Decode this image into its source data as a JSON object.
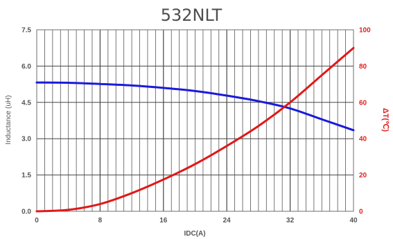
{
  "chart_data": {
    "type": "line",
    "title": "532NLT",
    "xlabel": "IDC(A)",
    "ylabel_left": "Inductance  (uH)",
    "ylabel_right": "ΔT(℃)",
    "xlim": [
      0,
      40
    ],
    "ylim_left": [
      0,
      7.5
    ],
    "ylim_right": [
      0,
      100
    ],
    "x_ticks": [
      0,
      8,
      16,
      24,
      32,
      40
    ],
    "y_left_ticks": [
      "0.0",
      "1.5",
      "3.0",
      "4.5",
      "6.0",
      "7.5"
    ],
    "y_right_ticks": [
      "0",
      "20",
      "40",
      "60",
      "80",
      "100"
    ],
    "grid": true,
    "series": [
      {
        "axis": "left",
        "color": "#1a1adc",
        "x": [
          0,
          4,
          8,
          12,
          16,
          20,
          24,
          28,
          32,
          36,
          40
        ],
        "values": [
          5.32,
          5.31,
          5.26,
          5.2,
          5.1,
          4.97,
          4.78,
          4.55,
          4.25,
          3.8,
          3.35
        ]
      },
      {
        "axis": "right",
        "color": "#e01818",
        "x": [
          0,
          4,
          8,
          12,
          16,
          20,
          24,
          28,
          32,
          36,
          40
        ],
        "values": [
          0,
          0.8,
          4,
          10,
          17.5,
          26,
          36,
          47,
          60,
          75,
          90
        ]
      }
    ]
  }
}
